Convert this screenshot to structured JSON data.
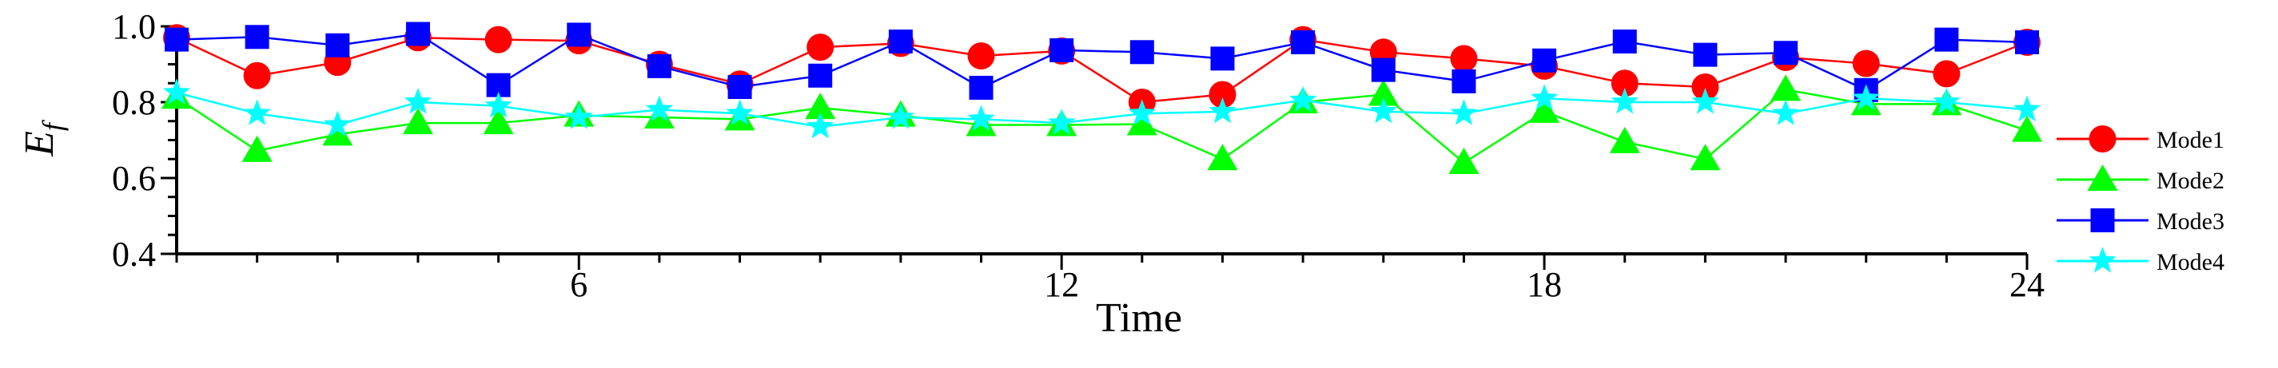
{
  "chart_data": {
    "type": "line",
    "title": "",
    "xlabel": "Time",
    "ylabel": {
      "base": "E",
      "sub": "f"
    },
    "xlim": [
      1,
      24
    ],
    "ylim": [
      0.4,
      1.0
    ],
    "x": [
      1,
      2,
      3,
      4,
      5,
      6,
      7,
      8,
      9,
      10,
      11,
      12,
      13,
      14,
      15,
      16,
      17,
      18,
      19,
      20,
      21,
      22,
      23,
      24
    ],
    "xticks": [
      6,
      12,
      18,
      24
    ],
    "yticks": [
      0.4,
      0.6,
      0.8,
      1.0
    ],
    "xtick_labels": [
      "6",
      "12",
      "18",
      "24"
    ],
    "ytick_labels": [
      "0.4",
      "0.6",
      "0.8",
      "1.0"
    ],
    "grid": false,
    "legend_position": "right",
    "series": [
      {
        "name": "Mode1",
        "color": "#ff0000",
        "marker": "circle",
        "values": [
          0.97,
          0.87,
          0.905,
          0.97,
          0.965,
          0.962,
          0.9,
          0.848,
          0.945,
          0.955,
          0.922,
          0.935,
          0.8,
          0.82,
          0.965,
          0.932,
          0.915,
          0.895,
          0.85,
          0.84,
          0.918,
          0.902,
          0.875,
          0.958
        ]
      },
      {
        "name": "Mode2",
        "color": "#00ff00",
        "marker": "triangle",
        "values": [
          0.812,
          0.672,
          0.715,
          0.745,
          0.745,
          0.765,
          0.76,
          0.755,
          0.785,
          0.765,
          0.74,
          0.74,
          0.742,
          0.65,
          0.8,
          0.82,
          0.64,
          0.775,
          0.695,
          0.65,
          0.833,
          0.795,
          0.795,
          0.725
        ]
      },
      {
        "name": "Mode3",
        "color": "#0000ff",
        "marker": "square",
        "values": [
          0.965,
          0.972,
          0.95,
          0.98,
          0.845,
          0.978,
          0.895,
          0.84,
          0.87,
          0.96,
          0.838,
          0.937,
          0.932,
          0.915,
          0.958,
          0.885,
          0.855,
          0.91,
          0.96,
          0.925,
          0.93,
          0.832,
          0.965,
          0.958
        ]
      },
      {
        "name": "Mode4",
        "color": "#00ffff",
        "marker": "star",
        "values": [
          0.825,
          0.77,
          0.74,
          0.8,
          0.79,
          0.76,
          0.78,
          0.77,
          0.735,
          0.76,
          0.755,
          0.745,
          0.77,
          0.775,
          0.805,
          0.775,
          0.77,
          0.81,
          0.8,
          0.8,
          0.77,
          0.81,
          0.8,
          0.78
        ]
      }
    ]
  }
}
